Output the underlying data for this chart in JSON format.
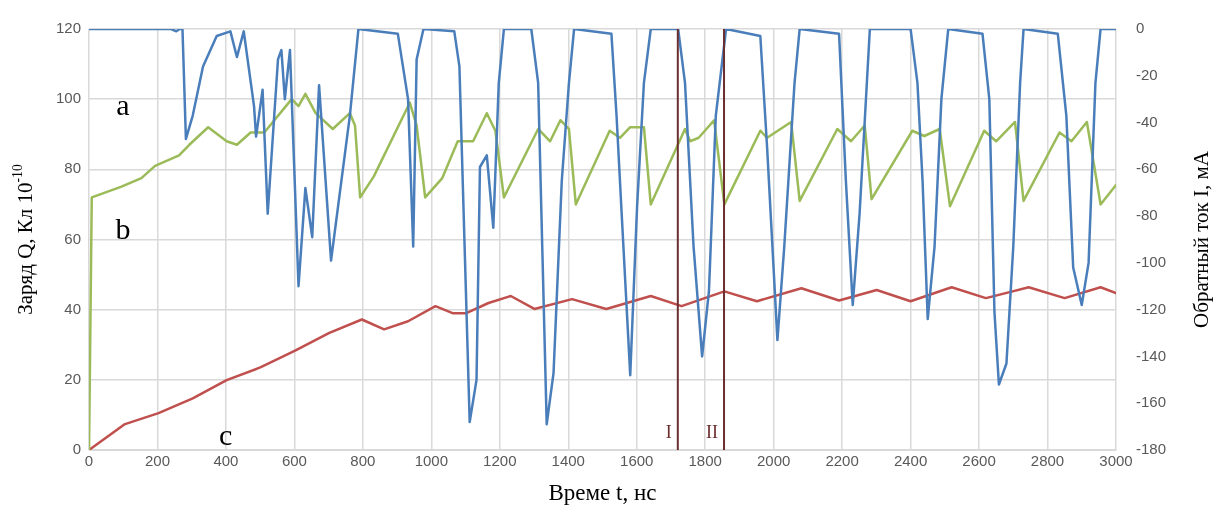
{
  "chart_data": {
    "type": "line",
    "xlabel": "Време t, нс",
    "ylabel": "Заряд Q, Кл 10$^{-10}$",
    "y2label": "Обратный ток I, мА",
    "xlim": [
      0,
      3000
    ],
    "xticks": [
      0,
      200,
      400,
      600,
      800,
      1000,
      1200,
      1400,
      1600,
      1800,
      2000,
      2200,
      2400,
      2600,
      2800,
      3000
    ],
    "ylim": [
      0,
      120
    ],
    "yticks": [
      0,
      20,
      40,
      60,
      80,
      100,
      120
    ],
    "y2lim": [
      -180,
      0
    ],
    "y2ticks": [
      -180,
      -160,
      -140,
      -120,
      -100,
      -80,
      -60,
      -40,
      -20,
      0
    ],
    "grid": true,
    "legend": false,
    "marker": "none",
    "line_style": "solid",
    "series": [
      {
        "color": "#4a7ebb",
        "axis": "y2",
        "x": [
          0,
          240,
          255,
          265,
          273,
          283,
          303,
          333,
          373,
          413,
          432,
          452,
          482,
          488,
          507,
          522,
          552,
          562,
          572,
          587,
          612,
          632,
          652,
          672,
          707,
          762,
          787,
          902,
          932,
          947,
          957,
          977,
          1067,
          1082,
          1112,
          1132,
          1142,
          1162,
          1181,
          1197,
          1212,
          1292,
          1312,
          1337,
          1357,
          1381,
          1402,
          1417,
          1526,
          1541,
          1556,
          1581,
          1601,
          1621,
          1641,
          1721,
          1741,
          1766,
          1791,
          1811,
          1831,
          1861,
          1961,
          1981,
          2011,
          2031,
          2061,
          2076,
          2191,
          2211,
          2231,
          2251,
          2281,
          2400,
          2420,
          2435,
          2450,
          2470,
          2490,
          2510,
          2610,
          2630,
          2645,
          2658,
          2680,
          2700,
          2720,
          2730,
          2830,
          2855,
          2875,
          2900,
          2920,
          2940,
          2955,
          3000
        ],
        "values": [
          0,
          0,
          -1,
          0,
          0,
          -47,
          -37,
          -16,
          -3,
          -1,
          -12,
          -1,
          -33,
          -46,
          -26,
          -79,
          -13,
          -9,
          -30,
          -9,
          -110,
          -68,
          -89,
          -24,
          -99,
          -37,
          0,
          -2,
          -30,
          -93,
          -13,
          0,
          -1,
          -16,
          -168,
          -150,
          -59,
          -54,
          -85,
          -23,
          0,
          0,
          -23,
          -169,
          -147,
          -65,
          -23,
          0,
          -2,
          -37,
          -79,
          -148,
          -76,
          -23,
          0,
          0,
          -23,
          -93,
          -140,
          -112,
          -37,
          0,
          -3,
          -51,
          -133,
          -93,
          -23,
          0,
          -2,
          -65,
          -118,
          -79,
          0,
          0,
          -23,
          -65,
          -124,
          -93,
          -30,
          0,
          -2,
          -30,
          -121,
          -152,
          -143,
          -93,
          -23,
          0,
          -2,
          -37,
          -102,
          -118,
          -100,
          -23,
          0,
          0
        ]
      },
      {
        "color": "#9bbb59",
        "x": [
          0,
          8,
          93,
          153,
          193,
          263,
          293,
          348,
          402,
          432,
          472,
          512,
          592,
          612,
          632,
          662,
          712,
          762,
          777,
          792,
          832,
          937,
          957,
          982,
          1032,
          1077,
          1122,
          1162,
          1187,
          1212,
          1312,
          1347,
          1377,
          1402,
          1422,
          1521,
          1551,
          1581,
          1621,
          1641,
          1741,
          1756,
          1781,
          1826,
          1856,
          1961,
          1981,
          2051,
          2076,
          2186,
          2226,
          2266,
          2286,
          2405,
          2440,
          2485,
          2515,
          2615,
          2650,
          2705,
          2730,
          2835,
          2870,
          2915,
          2955,
          3000
        ],
        "values": [
          0,
          72,
          75,
          77.5,
          81,
          84,
          87,
          92,
          88,
          87,
          90.5,
          90.5,
          100,
          98,
          101.5,
          96,
          91.5,
          96,
          92.5,
          72,
          78,
          99,
          92.5,
          72,
          77.5,
          88,
          88,
          96,
          91,
          72,
          91.5,
          88,
          94,
          91.5,
          70,
          91,
          89,
          92,
          92,
          70,
          91.5,
          88,
          89,
          94,
          70,
          91,
          89,
          93.5,
          71,
          91.5,
          88,
          92.5,
          71.5,
          91,
          89.5,
          91.5,
          69.5,
          91,
          88,
          93.5,
          71,
          90.5,
          88,
          93.5,
          70,
          75.5
        ]
      },
      {
        "color": "#c0504d",
        "x": [
          0,
          103,
          203,
          303,
          402,
          502,
          602,
          702,
          797,
          862,
          932,
          1012,
          1062,
          1102,
          1167,
          1232,
          1301,
          1411,
          1511,
          1641,
          1731,
          1856,
          1951,
          2081,
          2191,
          2301,
          2400,
          2520,
          2620,
          2745,
          2850,
          2955,
          3000
        ],
        "values": [
          0,
          7.3,
          10.5,
          14.7,
          19.9,
          23.6,
          28.3,
          33.4,
          37.2,
          34.4,
          36.7,
          41,
          39,
          39,
          41.9,
          43.9,
          40.2,
          43,
          40.2,
          43.9,
          41,
          45.2,
          42.4,
          46.1,
          42.6,
          45.6,
          42.4,
          46.4,
          43.3,
          46.4,
          43.3,
          46.4,
          44.7
        ]
      }
    ],
    "ref_lines": [
      {
        "axis": "x",
        "value": 1720,
        "label": "I",
        "color": "#6b2e2e"
      },
      {
        "axis": "x",
        "value": 1855,
        "label": "II",
        "color": "#6b2e2e"
      }
    ],
    "annotations": [
      "a",
      "b",
      "c"
    ]
  }
}
